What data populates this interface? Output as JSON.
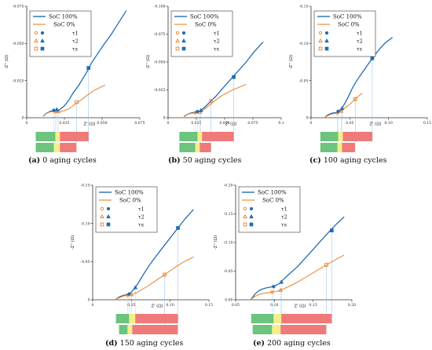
{
  "colors": {
    "soc100": "#1f6db5",
    "soc0": "#e8802a",
    "axis": "#333333",
    "dropline": "#8fb9e0",
    "bar_green": "#6cc47e",
    "bar_yellow": "#f2ef8a",
    "bar_red": "#f07a7a"
  },
  "legend": {
    "soc100": "SoC 100%",
    "soc0": "SoC 0%",
    "tau1": "τ1",
    "tau2": "τ2",
    "tau_s": "τs"
  },
  "axis_labels": {
    "x": "Z' (Ω)",
    "y": "-Z'' (Ω)"
  },
  "chart_data": [
    {
      "type": "line",
      "caption_label": "(a)",
      "caption_text": "0 aging cycles",
      "xlim": [
        0,
        0.075
      ],
      "ylim": [
        0,
        -0.075
      ],
      "xticks": [
        0,
        0.025,
        0.05,
        0.075
      ],
      "xtick_labels": [
        "0",
        "0.025",
        "0.050",
        "0.075"
      ],
      "yticks": [
        0,
        -0.025,
        -0.05,
        -0.075
      ],
      "ytick_labels": [
        "0",
        "-0.025",
        "-0.050",
        "-0.075"
      ],
      "series": [
        {
          "name": "SoC 100%",
          "x": [
            0.011,
            0.013,
            0.016,
            0.02,
            0.022,
            0.025,
            0.028,
            0.031,
            0.034,
            0.037,
            0.04,
            0.043,
            0.047,
            0.051,
            0.056,
            0.061,
            0.066
          ],
          "y": [
            -0.001,
            -0.003,
            -0.0045,
            -0.005,
            -0.0055,
            -0.008,
            -0.012,
            -0.017,
            -0.021,
            -0.026,
            -0.031,
            -0.037,
            -0.043,
            -0.049,
            -0.056,
            -0.064,
            -0.072
          ]
        },
        {
          "name": "SoC 0%",
          "x": [
            0.011,
            0.013,
            0.016,
            0.02,
            0.024,
            0.028,
            0.032,
            0.036,
            0.04,
            0.044,
            0.048,
            0.052
          ],
          "y": [
            -0.001,
            -0.003,
            -0.004,
            -0.004,
            -0.0045,
            -0.006,
            -0.009,
            -0.012,
            -0.015,
            -0.018,
            -0.02,
            -0.022
          ]
        }
      ],
      "markers": {
        "soc100": {
          "tau1": [
            0.018,
            -0.005
          ],
          "tau2": [
            0.02,
            -0.0055
          ],
          "tau_s": [
            0.041,
            -0.0335
          ]
        },
        "soc0": {
          "tau1": [
            0.019,
            -0.004
          ],
          "tau2": [
            0.021,
            -0.0042
          ],
          "tau_s": [
            0.033,
            -0.0105
          ]
        }
      },
      "bars": [
        {
          "green": [
            0.006,
            0.019
          ],
          "yellow": [
            0.019,
            0.022
          ],
          "red": [
            0.022,
            0.041
          ]
        },
        {
          "green": [
            0.006,
            0.018
          ],
          "yellow": [
            0.018,
            0.022
          ],
          "red": [
            0.022,
            0.033
          ]
        }
      ]
    },
    {
      "type": "line",
      "caption_label": "(b)",
      "caption_text": "50 aging cycles",
      "xlim": [
        0,
        0.1
      ],
      "ylim": [
        0,
        -0.1
      ],
      "xticks": [
        0,
        0.025,
        0.05,
        0.075,
        0.1
      ],
      "xtick_labels": [
        "0",
        "0.025",
        "0.050",
        "0.075",
        "0.1"
      ],
      "yticks": [
        0,
        -0.025,
        -0.05,
        -0.075,
        -0.1
      ],
      "ytick_labels": [
        "0",
        "-0.025",
        "-0.050",
        "-0.075",
        "-0.100"
      ],
      "series": [
        {
          "name": "SoC 100%",
          "x": [
            0.014,
            0.017,
            0.021,
            0.025,
            0.028,
            0.032,
            0.036,
            0.042,
            0.048,
            0.055,
            0.062,
            0.069,
            0.076,
            0.084
          ],
          "y": [
            -0.001,
            -0.003,
            -0.0045,
            -0.005,
            -0.006,
            -0.009,
            -0.013,
            -0.019,
            -0.026,
            -0.034,
            -0.042,
            -0.05,
            -0.059,
            -0.068
          ]
        },
        {
          "name": "SoC 0%",
          "x": [
            0.014,
            0.017,
            0.021,
            0.025,
            0.03,
            0.035,
            0.041,
            0.048,
            0.055,
            0.062,
            0.069
          ],
          "y": [
            -0.001,
            -0.003,
            -0.004,
            -0.0045,
            -0.006,
            -0.01,
            -0.015,
            -0.02,
            -0.024,
            -0.027,
            -0.03
          ]
        }
      ],
      "markers": {
        "soc100": {
          "tau1": [
            0.026,
            -0.0055
          ],
          "tau2": [
            0.029,
            -0.0065
          ],
          "tau_s": [
            0.058,
            -0.0365
          ]
        },
        "soc0": {
          "tau1": [
            0.024,
            -0.0045
          ],
          "tau2": [
            0.028,
            -0.005
          ],
          "tau_s": [
            0.038,
            -0.015
          ]
        }
      },
      "bars": [
        {
          "green": [
            0.01,
            0.026
          ],
          "yellow": [
            0.026,
            0.03
          ],
          "red": [
            0.03,
            0.058
          ]
        },
        {
          "green": [
            0.01,
            0.024
          ],
          "yellow": [
            0.024,
            0.028
          ],
          "red": [
            0.028,
            0.038
          ]
        }
      ]
    },
    {
      "type": "line",
      "caption_label": "(c)",
      "caption_text": "100 aging cycles",
      "xlim": [
        0,
        0.15
      ],
      "ylim": [
        0,
        -0.15
      ],
      "xticks": [
        0,
        0.05,
        0.1,
        0.15
      ],
      "xtick_labels": [
        "0",
        "0.05",
        "0.10",
        "0.15"
      ],
      "yticks": [
        0,
        -0.05,
        -0.1,
        -0.15
      ],
      "ytick_labels": [
        "0",
        "-0.05",
        "-0.10",
        "-0.15"
      ],
      "series": [
        {
          "name": "SoC 100%",
          "x": [
            0.018,
            0.022,
            0.027,
            0.032,
            0.036,
            0.04,
            0.044,
            0.048,
            0.052,
            0.056,
            0.061,
            0.067,
            0.073,
            0.08,
            0.088,
            0.096,
            0.105
          ],
          "y": [
            -0.001,
            -0.004,
            -0.006,
            -0.007,
            -0.009,
            -0.013,
            -0.02,
            -0.028,
            -0.037,
            -0.045,
            -0.053,
            -0.062,
            -0.071,
            -0.081,
            -0.092,
            -0.101,
            -0.108
          ]
        },
        {
          "name": "SoC 0%",
          "x": [
            0.018,
            0.022,
            0.027,
            0.032,
            0.036,
            0.04,
            0.045,
            0.05,
            0.055,
            0.06,
            0.066
          ],
          "y": [
            -0.001,
            -0.003,
            -0.005,
            -0.006,
            -0.007,
            -0.01,
            -0.014,
            -0.018,
            -0.023,
            -0.028,
            -0.033
          ]
        }
      ],
      "markers": {
        "soc100": {
          "tau1": [
            0.035,
            -0.0085
          ],
          "tau2": [
            0.04,
            -0.0125
          ],
          "tau_s": [
            0.079,
            -0.08
          ]
        },
        "soc0": {
          "tau1": [
            0.034,
            -0.0065
          ],
          "tau2": [
            0.039,
            -0.009
          ],
          "tau_s": [
            0.057,
            -0.025
          ]
        }
      },
      "bars": [
        {
          "green": [
            0.012,
            0.035
          ],
          "yellow": [
            0.035,
            0.041
          ],
          "red": [
            0.041,
            0.079
          ]
        },
        {
          "green": [
            0.012,
            0.034
          ],
          "yellow": [
            0.034,
            0.04
          ],
          "red": [
            0.04,
            0.057
          ]
        }
      ]
    },
    {
      "type": "line",
      "caption_label": "(d)",
      "caption_text": "150 aging cycles",
      "xlim": [
        0,
        0.15
      ],
      "ylim": [
        0,
        -0.15
      ],
      "xticks": [
        0,
        0.05,
        0.1,
        0.15
      ],
      "xtick_labels": [
        "0",
        "0.05",
        "0.10",
        "0.15"
      ],
      "yticks": [
        0,
        -0.05,
        -0.1,
        -0.15
      ],
      "ytick_labels": [
        "0",
        "-0.05",
        "-0.10",
        "-0.15"
      ],
      "series": [
        {
          "name": "SoC 100%",
          "x": [
            0.03,
            0.035,
            0.04,
            0.045,
            0.05,
            0.055,
            0.06,
            0.066,
            0.073,
            0.081,
            0.09,
            0.1,
            0.11,
            0.12,
            0.13
          ],
          "y": [
            -0.001,
            -0.004,
            -0.006,
            -0.007,
            -0.01,
            -0.016,
            -0.024,
            -0.034,
            -0.045,
            -0.056,
            -0.068,
            -0.081,
            -0.094,
            -0.107,
            -0.118
          ]
        },
        {
          "name": "SoC 0%",
          "x": [
            0.03,
            0.035,
            0.04,
            0.045,
            0.05,
            0.056,
            0.063,
            0.071,
            0.08,
            0.09,
            0.1,
            0.11,
            0.12,
            0.13
          ],
          "y": [
            -0.001,
            -0.003,
            -0.005,
            -0.006,
            -0.007,
            -0.009,
            -0.013,
            -0.018,
            -0.024,
            -0.031,
            -0.038,
            -0.045,
            -0.051,
            -0.056
          ]
        }
      ],
      "markers": {
        "soc100": {
          "tau1": [
            0.047,
            -0.0075
          ],
          "tau2": [
            0.055,
            -0.016
          ],
          "tau_s": [
            0.11,
            -0.094
          ]
        },
        "soc0": {
          "tau1": [
            0.045,
            -0.006
          ],
          "tau2": [
            0.05,
            -0.007
          ],
          "tau_s": [
            0.093,
            -0.033
          ]
        }
      },
      "bars": [
        {
          "green": [
            0.03,
            0.047
          ],
          "yellow": [
            0.047,
            0.055
          ],
          "red": [
            0.055,
            0.11
          ]
        },
        {
          "green": [
            0.034,
            0.045
          ],
          "yellow": [
            0.045,
            0.051
          ],
          "red": [
            0.051,
            0.11
          ]
        }
      ]
    },
    {
      "type": "line",
      "caption_label": "(e)",
      "caption_text": "200 aging cycles",
      "xlim": [
        0.05,
        0.2
      ],
      "ylim": [
        0,
        -0.2
      ],
      "xticks": [
        0.05,
        0.1,
        0.15,
        0.2
      ],
      "xtick_labels": [
        "0.05",
        "0.10",
        "0.15",
        "0.20"
      ],
      "yticks": [
        0,
        -0.05,
        -0.1,
        -0.15,
        -0.2
      ],
      "ytick_labels": [
        "0.00",
        "-0.05",
        "-0.10",
        "-0.15",
        "-0.20"
      ],
      "series": [
        {
          "name": "SoC 100%",
          "x": [
            0.07,
            0.075,
            0.08,
            0.085,
            0.09,
            0.095,
            0.1,
            0.106,
            0.112,
            0.12,
            0.13,
            0.14,
            0.15,
            0.16,
            0.17,
            0.18,
            0.19
          ],
          "y": [
            -0.001,
            -0.01,
            -0.016,
            -0.019,
            -0.021,
            -0.022,
            -0.024,
            -0.028,
            -0.036,
            -0.046,
            -0.058,
            -0.073,
            -0.088,
            -0.103,
            -0.118,
            -0.132,
            -0.145
          ]
        },
        {
          "name": "SoC 0%",
          "x": [
            0.07,
            0.075,
            0.08,
            0.085,
            0.09,
            0.095,
            0.1,
            0.106,
            0.112,
            0.12,
            0.13,
            0.14,
            0.15,
            0.16,
            0.17,
            0.18,
            0.19
          ],
          "y": [
            -0.001,
            -0.006,
            -0.009,
            -0.011,
            -0.012,
            -0.013,
            -0.014,
            -0.016,
            -0.019,
            -0.024,
            -0.031,
            -0.039,
            -0.047,
            -0.055,
            -0.063,
            -0.071,
            -0.078
          ]
        }
      ],
      "markers": {
        "soc100": {
          "tau1": [
            0.099,
            -0.023
          ],
          "tau2": [
            0.109,
            -0.031
          ],
          "tau_s": [
            0.174,
            -0.121
          ]
        },
        "soc0": {
          "tau1": [
            0.097,
            -0.0135
          ],
          "tau2": [
            0.108,
            -0.017
          ],
          "tau_s": [
            0.167,
            -0.061
          ]
        }
      },
      "bars": [
        {
          "green": [
            0.07,
            0.099
          ],
          "yellow": [
            0.099,
            0.109
          ],
          "red": [
            0.109,
            0.174
          ]
        },
        {
          "green": [
            0.072,
            0.097
          ],
          "yellow": [
            0.097,
            0.108
          ],
          "red": [
            0.108,
            0.167
          ]
        }
      ]
    }
  ]
}
